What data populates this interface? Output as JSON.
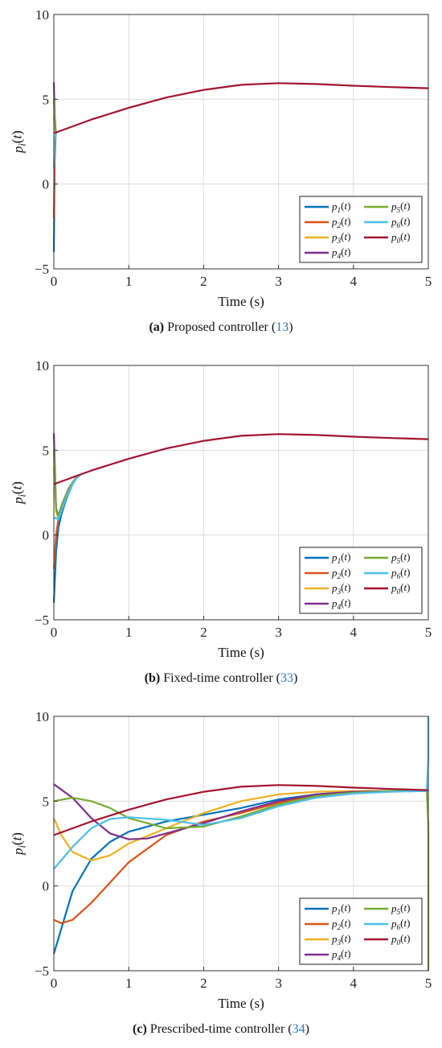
{
  "colors": {
    "p1": "#0072BD",
    "p2": "#D95319",
    "p3": "#EDB120",
    "p4": "#7E2F8E",
    "p5": "#77AC30",
    "p6": "#4DBEEE",
    "p0": "#A2142F",
    "grid": "#dcdcdc",
    "axis": "#333333"
  },
  "panels": [
    {
      "caption": {
        "letter": "(a)",
        "text": " Proposed controller (",
        "ref": "13",
        "close": ")"
      },
      "chart_data": {
        "type": "line",
        "xlabel": "Time (s)",
        "ylabel": "p_i(t)",
        "xlim": [
          0,
          5
        ],
        "ylim": [
          -5,
          10
        ],
        "xticks": [
          "0",
          "1",
          "2",
          "3",
          "4",
          "5"
        ],
        "yticks": [
          "-5",
          "0",
          "5",
          "10"
        ],
        "grid": true,
        "legend_position": "bottom-right",
        "legend_columns": 2,
        "series": [
          {
            "name": "p_1(t)",
            "key": "p1",
            "x": [
              0,
              0.012,
              0.025,
              0.04
            ],
            "y": [
              -4,
              1.5,
              2.95,
              3.1
            ]
          },
          {
            "name": "p_2(t)",
            "key": "p2",
            "x": [
              0,
              0.012,
              0.025,
              0.04
            ],
            "y": [
              -2,
              2.0,
              3.0,
              3.1
            ]
          },
          {
            "name": "p_3(t)",
            "key": "p3",
            "x": [
              0,
              0.012,
              0.025,
              0.04
            ],
            "y": [
              4,
              3.3,
              3.05,
              3.1
            ]
          },
          {
            "name": "p_4(t)",
            "key": "p4",
            "x": [
              0,
              0.012,
              0.025,
              0.04
            ],
            "y": [
              6,
              4.0,
              3.1,
              3.1
            ]
          },
          {
            "name": "p_5(t)",
            "key": "p5",
            "x": [
              0,
              0.012,
              0.025,
              0.04
            ],
            "y": [
              5,
              3.6,
              3.05,
              3.1
            ]
          },
          {
            "name": "p_6(t)",
            "key": "p6",
            "x": [
              0,
              0.012,
              0.025,
              0.04
            ],
            "y": [
              1,
              2.4,
              3.0,
              3.1
            ]
          },
          {
            "name": "p_0(t)",
            "key": "p0",
            "x": [
              0,
              0.5,
              1,
              1.5,
              2,
              2.5,
              3,
              3.5,
              4,
              4.5,
              5
            ],
            "y": [
              3.0,
              3.8,
              4.5,
              5.1,
              5.55,
              5.85,
              5.95,
              5.9,
              5.8,
              5.72,
              5.65
            ]
          }
        ]
      }
    },
    {
      "caption": {
        "letter": "(b)",
        "text": " Fixed-time controller (",
        "ref": "33",
        "close": ")"
      },
      "chart_data": {
        "type": "line",
        "xlabel": "Time (s)",
        "ylabel": "p_i(t)",
        "xlim": [
          0,
          5
        ],
        "ylim": [
          -5,
          10
        ],
        "xticks": [
          "0",
          "1",
          "2",
          "3",
          "4",
          "5"
        ],
        "yticks": [
          "-5",
          "0",
          "5",
          "10"
        ],
        "grid": true,
        "legend_position": "bottom-right",
        "legend_columns": 2,
        "series": [
          {
            "name": "p_1(t)",
            "key": "p1",
            "x": [
              0,
              0.03,
              0.06,
              0.1,
              0.15,
              0.2,
              0.25,
              0.3,
              0.35
            ],
            "y": [
              -4,
              -1.0,
              0.4,
              1.2,
              1.9,
              2.5,
              3.0,
              3.35,
              3.55
            ]
          },
          {
            "name": "p_2(t)",
            "key": "p2",
            "x": [
              0,
              0.03,
              0.06,
              0.1,
              0.15,
              0.2,
              0.25,
              0.3,
              0.35
            ],
            "y": [
              -2,
              0.0,
              0.9,
              1.5,
              2.1,
              2.6,
              3.05,
              3.35,
              3.55
            ]
          },
          {
            "name": "p_3(t)",
            "key": "p3",
            "x": [
              0,
              0.03,
              0.06,
              0.1,
              0.15,
              0.2,
              0.25,
              0.3,
              0.35
            ],
            "y": [
              4,
              1.4,
              1.0,
              1.6,
              2.2,
              2.7,
              3.1,
              3.4,
              3.55
            ]
          },
          {
            "name": "p_4(t)",
            "key": "p4",
            "x": [
              0,
              0.03,
              0.06,
              0.1,
              0.15,
              0.2,
              0.25,
              0.3,
              0.35
            ],
            "y": [
              6,
              1.6,
              1.1,
              1.7,
              2.25,
              2.75,
              3.1,
              3.4,
              3.55
            ]
          },
          {
            "name": "p_5(t)",
            "key": "p5",
            "x": [
              0,
              0.03,
              0.06,
              0.1,
              0.15,
              0.2,
              0.25,
              0.3,
              0.35
            ],
            "y": [
              5,
              1.5,
              1.05,
              1.65,
              2.2,
              2.7,
              3.1,
              3.4,
              3.55
            ]
          },
          {
            "name": "p_6(t)",
            "key": "p6",
            "x": [
              0,
              0.03,
              0.06,
              0.1,
              0.15,
              0.2,
              0.25,
              0.3,
              0.35
            ],
            "y": [
              1,
              1.0,
              0.9,
              1.4,
              2.0,
              2.55,
              3.0,
              3.35,
              3.55
            ]
          },
          {
            "name": "p_0(t)",
            "key": "p0",
            "x": [
              0,
              0.5,
              1,
              1.5,
              2,
              2.5,
              3,
              3.5,
              4,
              4.5,
              5
            ],
            "y": [
              3.0,
              3.8,
              4.5,
              5.1,
              5.55,
              5.85,
              5.95,
              5.9,
              5.8,
              5.72,
              5.65
            ]
          }
        ]
      }
    },
    {
      "caption": {
        "letter": "(c)",
        "text": " Prescribed-time controller (",
        "ref": "34",
        "close": ")"
      },
      "chart_data": {
        "type": "line",
        "xlabel": "Time (s)",
        "ylabel": "p_i(t)",
        "xlim": [
          0,
          5
        ],
        "ylim": [
          -5,
          10
        ],
        "xticks": [
          "0",
          "1",
          "2",
          "3",
          "4",
          "5"
        ],
        "yticks": [
          "-5",
          "0",
          "5",
          "10"
        ],
        "grid": true,
        "legend_position": "bottom-right",
        "legend_columns": 2,
        "series": [
          {
            "name": "p_1(t)",
            "key": "p1",
            "x": [
              0,
              0.25,
              0.5,
              0.75,
              1,
              1.5,
              2,
              2.5,
              3,
              3.5,
              4,
              4.5,
              4.98,
              5
            ],
            "y": [
              -4,
              -0.3,
              1.6,
              2.6,
              3.2,
              3.8,
              4.2,
              4.6,
              5.1,
              5.4,
              5.55,
              5.6,
              5.6,
              5.6
            ]
          },
          {
            "name": "p_2(t)",
            "key": "p2",
            "x": [
              0,
              0.1,
              0.25,
              0.5,
              0.75,
              1,
              1.5,
              2,
              2.5,
              3,
              3.5,
              4,
              4.5,
              4.98,
              5
            ],
            "y": [
              -2,
              -2.2,
              -2.0,
              -1.0,
              0.2,
              1.4,
              3.0,
              3.8,
              4.3,
              4.9,
              5.3,
              5.5,
              5.6,
              5.6,
              5.6
            ]
          },
          {
            "name": "p_3(t)",
            "key": "p3",
            "x": [
              0,
              0.1,
              0.25,
              0.5,
              0.75,
              1,
              1.5,
              2,
              2.5,
              3,
              3.5,
              4,
              4.5,
              4.98,
              5
            ],
            "y": [
              4,
              3.0,
              2.0,
              1.5,
              1.8,
              2.5,
              3.4,
              4.3,
              5.0,
              5.4,
              5.55,
              5.6,
              5.6,
              5.6,
              5.6
            ]
          },
          {
            "name": "p_4(t)",
            "key": "p4",
            "x": [
              0,
              0.25,
              0.5,
              0.75,
              1,
              1.25,
              1.5,
              2,
              2.5,
              3,
              3.5,
              4,
              4.5,
              4.98,
              5
            ],
            "y": [
              6,
              5.2,
              4.0,
              3.1,
              2.75,
              2.8,
              3.1,
              3.7,
              4.4,
              5.0,
              5.4,
              5.55,
              5.6,
              5.6,
              5.6
            ]
          },
          {
            "name": "p_5(t)",
            "key": "p5",
            "x": [
              0,
              0.25,
              0.5,
              0.75,
              1,
              1.5,
              2,
              2.5,
              3,
              3.5,
              4,
              4.5,
              4.98,
              5,
              5
            ],
            "y": [
              5,
              5.2,
              5.0,
              4.6,
              4.0,
              3.4,
              3.5,
              4.1,
              4.8,
              5.3,
              5.5,
              5.6,
              5.6,
              3.5,
              -5
            ]
          },
          {
            "name": "p_6(t)",
            "key": "p6",
            "x": [
              0,
              0.25,
              0.5,
              0.75,
              1,
              1.5,
              2,
              2.5,
              3,
              3.5,
              4,
              4.5,
              4.98,
              5,
              5
            ],
            "y": [
              1,
              2.3,
              3.4,
              3.95,
              4.05,
              3.9,
              3.6,
              4.0,
              4.7,
              5.2,
              5.45,
              5.55,
              5.6,
              7.5,
              10
            ]
          },
          {
            "name": "p_0(t)",
            "key": "p0",
            "x": [
              0,
              0.5,
              1,
              1.5,
              2,
              2.5,
              3,
              3.5,
              4,
              4.5,
              5
            ],
            "y": [
              3.0,
              3.8,
              4.5,
              5.1,
              5.55,
              5.85,
              5.95,
              5.9,
              5.8,
              5.72,
              5.65
            ]
          }
        ]
      }
    }
  ]
}
